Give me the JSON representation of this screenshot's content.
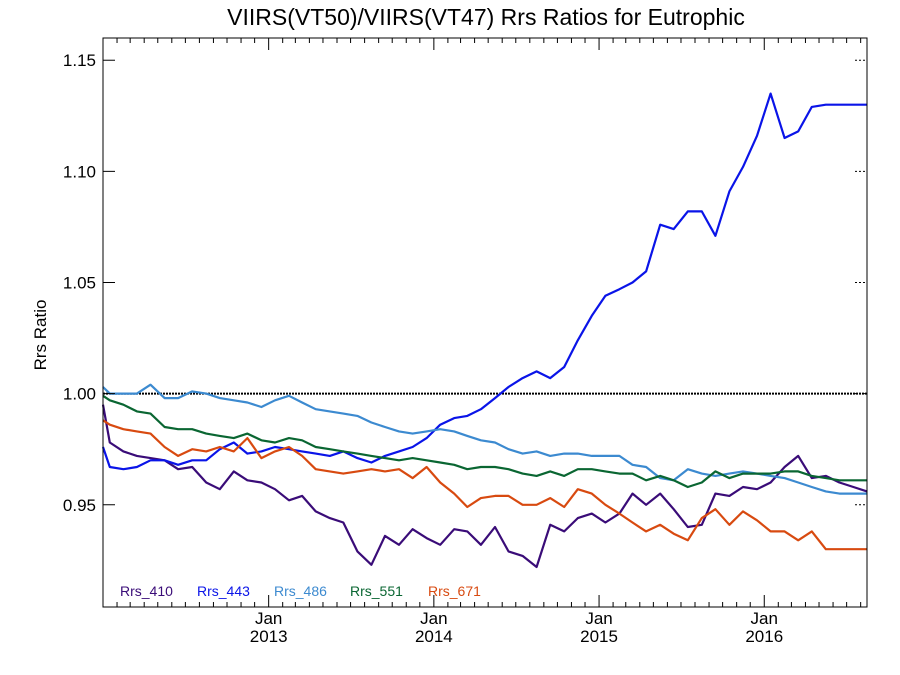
{
  "chart_data": {
    "type": "line",
    "title": "VIIRS(VT50)/VIIRS(VT47)  Rrs Ratios for Eutrophic",
    "xlabel": "",
    "ylabel": "Rrs Ratio",
    "xlim": [
      "2012-01-01",
      "2016-08-15"
    ],
    "ylim": [
      0.904,
      1.16
    ],
    "y_ticks": [
      "0.95",
      "1.00",
      "1.05",
      "1.10",
      "1.15"
    ],
    "x_ticks": [
      {
        "month": "Jan",
        "year": "2013",
        "date": "2013-01-01"
      },
      {
        "month": "Jan",
        "year": "2014",
        "date": "2014-01-01"
      },
      {
        "month": "Jan",
        "year": "2015",
        "date": "2015-01-01"
      },
      {
        "month": "Jan",
        "year": "2016",
        "date": "2016-01-01"
      }
    ],
    "reference_line": 1.0,
    "legend_position": "bottom-left",
    "grid": false,
    "x": [
      "2012-01-01",
      "2012-01-16",
      "2012-02-15",
      "2012-03-16",
      "2012-04-15",
      "2012-05-16",
      "2012-06-15",
      "2012-07-16",
      "2012-08-16",
      "2012-09-15",
      "2012-10-16",
      "2012-11-15",
      "2012-12-16",
      "2013-01-15",
      "2013-02-15",
      "2013-03-16",
      "2013-04-15",
      "2013-05-16",
      "2013-06-15",
      "2013-07-16",
      "2013-08-16",
      "2013-09-15",
      "2013-10-16",
      "2013-11-15",
      "2013-12-16",
      "2014-01-15",
      "2014-02-15",
      "2014-03-16",
      "2014-04-15",
      "2014-05-16",
      "2014-06-15",
      "2014-07-16",
      "2014-08-16",
      "2014-09-15",
      "2014-10-16",
      "2014-11-15",
      "2014-12-16",
      "2015-01-15",
      "2015-02-15",
      "2015-03-16",
      "2015-04-15",
      "2015-05-16",
      "2015-06-15",
      "2015-07-16",
      "2015-08-16",
      "2015-09-15",
      "2015-10-16",
      "2015-11-15",
      "2015-12-16",
      "2016-01-15",
      "2016-02-15",
      "2016-03-16",
      "2016-04-15",
      "2016-05-16",
      "2016-06-15",
      "2016-07-16",
      "2016-08-15"
    ],
    "series": [
      {
        "name": "Rrs_410",
        "color": "#3a0c78",
        "values": [
          0.995,
          0.978,
          0.974,
          0.972,
          0.971,
          0.97,
          0.966,
          0.967,
          0.96,
          0.957,
          0.965,
          0.961,
          0.96,
          0.957,
          0.952,
          0.954,
          0.947,
          0.944,
          0.942,
          0.929,
          0.923,
          0.936,
          0.932,
          0.939,
          0.935,
          0.932,
          0.939,
          0.938,
          0.932,
          0.94,
          0.929,
          0.927,
          0.922,
          0.941,
          0.938,
          0.944,
          0.946,
          0.942,
          0.946,
          0.955,
          0.95,
          0.955,
          0.948,
          0.94,
          0.941,
          0.955,
          0.954,
          0.958,
          0.957,
          0.96,
          0.967,
          0.972,
          0.962,
          0.963,
          0.96,
          0.958,
          0.956
        ]
      },
      {
        "name": "Rrs_443",
        "color": "#0a14e8",
        "values": [
          0.976,
          0.967,
          0.966,
          0.967,
          0.97,
          0.97,
          0.968,
          0.97,
          0.97,
          0.975,
          0.978,
          0.973,
          0.974,
          0.976,
          0.975,
          0.974,
          0.973,
          0.972,
          0.974,
          0.971,
          0.969,
          0.972,
          0.974,
          0.976,
          0.98,
          0.986,
          0.989,
          0.99,
          0.993,
          0.998,
          1.003,
          1.007,
          1.01,
          1.007,
          1.012,
          1.024,
          1.035,
          1.044,
          1.047,
          1.05,
          1.055,
          1.076,
          1.074,
          1.082,
          1.082,
          1.071,
          1.091,
          1.102,
          1.116,
          1.135,
          1.115,
          1.118,
          1.129,
          1.13,
          1.13,
          1.13,
          1.13
        ]
      },
      {
        "name": "Rrs_486",
        "color": "#3c8ad0",
        "values": [
          1.003,
          1.0,
          1.0,
          1.0,
          1.004,
          0.998,
          0.998,
          1.001,
          1.0,
          0.998,
          0.997,
          0.996,
          0.994,
          0.997,
          0.999,
          0.996,
          0.993,
          0.992,
          0.991,
          0.99,
          0.987,
          0.985,
          0.983,
          0.982,
          0.983,
          0.984,
          0.983,
          0.981,
          0.979,
          0.978,
          0.975,
          0.973,
          0.974,
          0.972,
          0.973,
          0.973,
          0.972,
          0.972,
          0.972,
          0.968,
          0.967,
          0.962,
          0.961,
          0.966,
          0.964,
          0.963,
          0.964,
          0.965,
          0.964,
          0.963,
          0.962,
          0.96,
          0.958,
          0.956,
          0.955,
          0.955,
          0.955
        ]
      },
      {
        "name": "Rrs_551",
        "color": "#0a6632",
        "values": [
          0.999,
          0.997,
          0.995,
          0.992,
          0.991,
          0.985,
          0.984,
          0.984,
          0.982,
          0.981,
          0.98,
          0.982,
          0.979,
          0.978,
          0.98,
          0.979,
          0.976,
          0.975,
          0.974,
          0.973,
          0.972,
          0.971,
          0.97,
          0.971,
          0.97,
          0.969,
          0.968,
          0.966,
          0.967,
          0.967,
          0.966,
          0.964,
          0.963,
          0.965,
          0.963,
          0.966,
          0.966,
          0.965,
          0.964,
          0.964,
          0.961,
          0.963,
          0.961,
          0.958,
          0.96,
          0.965,
          0.962,
          0.964,
          0.964,
          0.964,
          0.965,
          0.965,
          0.963,
          0.962,
          0.961,
          0.961,
          0.961
        ]
      },
      {
        "name": "Rrs_671",
        "color": "#d84a10",
        "values": [
          0.988,
          0.986,
          0.984,
          0.983,
          0.982,
          0.976,
          0.972,
          0.975,
          0.974,
          0.976,
          0.974,
          0.98,
          0.971,
          0.974,
          0.976,
          0.972,
          0.966,
          0.965,
          0.964,
          0.965,
          0.966,
          0.965,
          0.966,
          0.962,
          0.967,
          0.96,
          0.955,
          0.949,
          0.953,
          0.954,
          0.954,
          0.95,
          0.95,
          0.953,
          0.949,
          0.957,
          0.955,
          0.95,
          0.946,
          0.942,
          0.938,
          0.941,
          0.937,
          0.934,
          0.944,
          0.948,
          0.941,
          0.947,
          0.943,
          0.938,
          0.938,
          0.934,
          0.938,
          0.93,
          0.93,
          0.93,
          0.93
        ]
      }
    ]
  }
}
